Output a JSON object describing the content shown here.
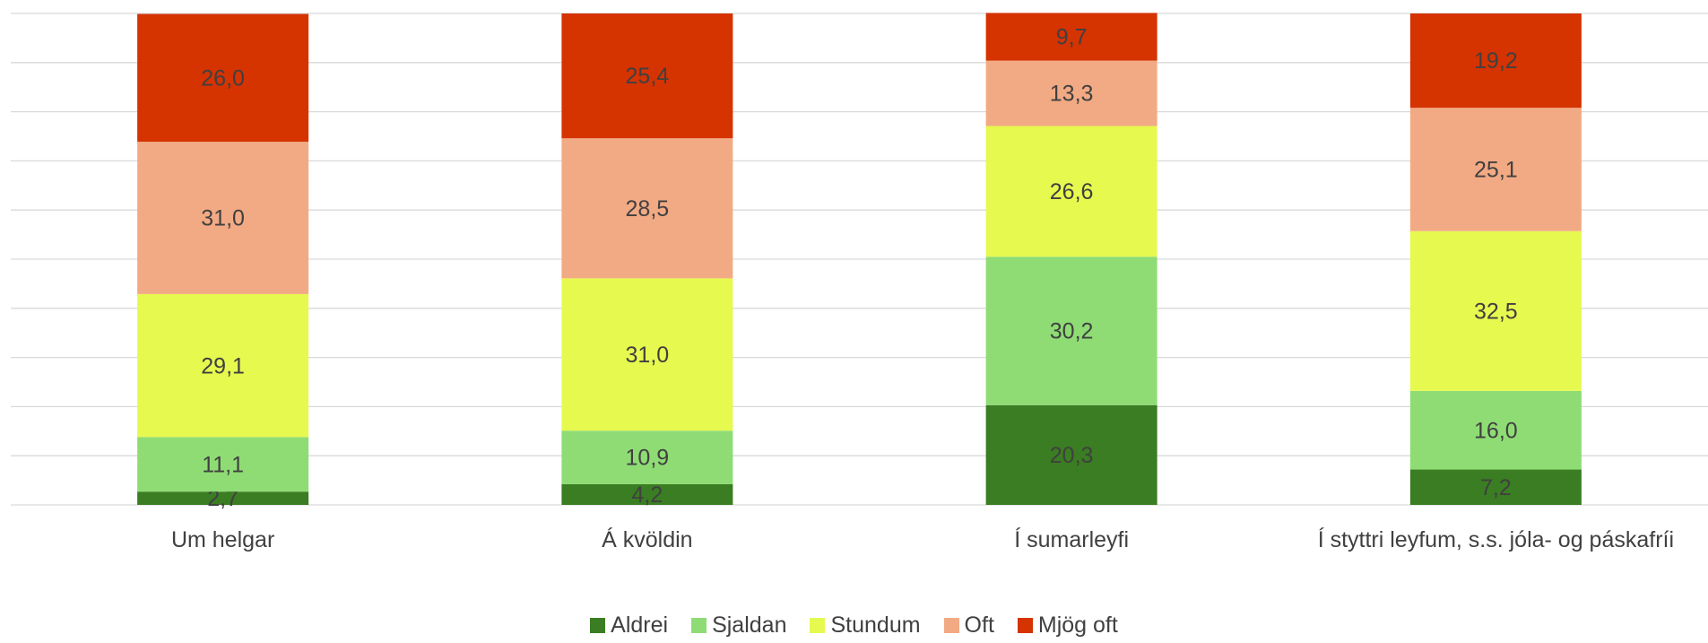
{
  "chart_data": {
    "type": "stacked_bar",
    "categories": [
      "Um helgar",
      "Á kvöldin",
      "Í sumarleyfi",
      "Í styttri leyfum, s.s. jóla- og páskafríi"
    ],
    "series": [
      {
        "name": "Aldrei",
        "color": "#3a7d22",
        "values": [
          2.7,
          4.2,
          20.3,
          7.2
        ],
        "value_labels": [
          "2,7",
          "4,2",
          "20,3",
          "7,2"
        ]
      },
      {
        "name": "Sjaldan",
        "color": "#8fdc75",
        "values": [
          11.1,
          10.9,
          30.2,
          16.0
        ],
        "value_labels": [
          "11,1",
          "10,9",
          "30,2",
          "16,0"
        ]
      },
      {
        "name": "Stundum",
        "color": "#e6f94f",
        "values": [
          29.1,
          31.0,
          26.6,
          32.5
        ],
        "value_labels": [
          "29,1",
          "31,0",
          "26,6",
          "32,5"
        ]
      },
      {
        "name": "Oft",
        "color": "#f2aa84",
        "values": [
          31.0,
          28.5,
          13.3,
          25.1
        ],
        "value_labels": [
          "31,0",
          "28,5",
          "13,3",
          "25,1"
        ]
      },
      {
        "name": "Mjög oft",
        "color": "#d53300",
        "values": [
          26.0,
          25.4,
          9.7,
          19.2
        ],
        "value_labels": [
          "26,0",
          "25,4",
          "9,7",
          "19,2"
        ]
      }
    ],
    "ylim": [
      0,
      100
    ],
    "yticks": [
      0,
      10,
      20,
      30,
      40,
      50,
      60,
      70,
      80,
      90,
      100
    ],
    "grid": true
  }
}
